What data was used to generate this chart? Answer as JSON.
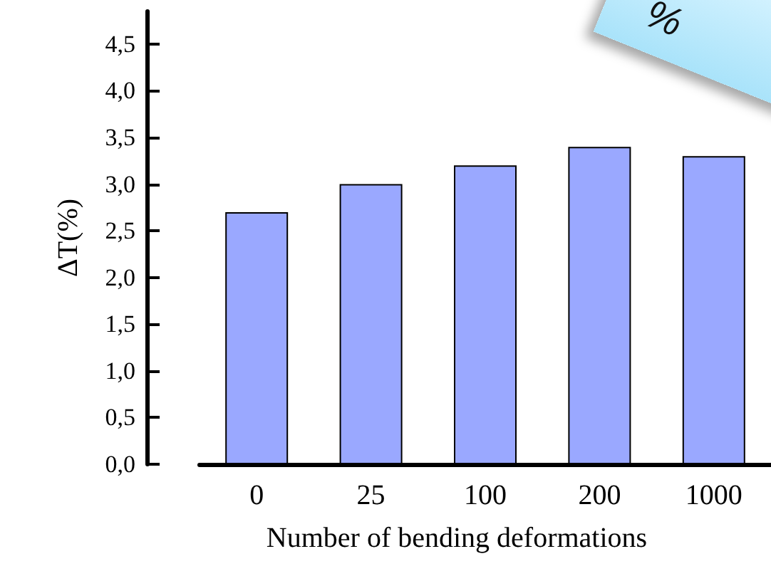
{
  "chart_data": {
    "type": "bar",
    "xlabel": "Number of bending deformations",
    "ylabel": "ΔT(%)",
    "categories": [
      "0",
      "25",
      "100",
      "200",
      "1000"
    ],
    "values": [
      2.7,
      3.0,
      3.2,
      3.4,
      3.3
    ],
    "color": "#9aa8ff",
    "ylim": [
      0,
      4.85
    ],
    "yticks": [
      {
        "value": 0,
        "label": "0,0"
      },
      {
        "value": 0.5,
        "label": "0,5"
      },
      {
        "value": 1,
        "label": "1,0"
      },
      {
        "value": 1.5,
        "label": "1,5"
      },
      {
        "value": 2,
        "label": "2,0"
      },
      {
        "value": 2.5,
        "label": "2,5"
      },
      {
        "value": 3,
        "label": "3,0"
      },
      {
        "value": 3.5,
        "label": "3,5"
      },
      {
        "value": 4,
        "label": "4,0"
      },
      {
        "value": 4.5,
        "label": "4,5"
      }
    ],
    "grid": false,
    "annotations": [
      "%"
    ]
  }
}
